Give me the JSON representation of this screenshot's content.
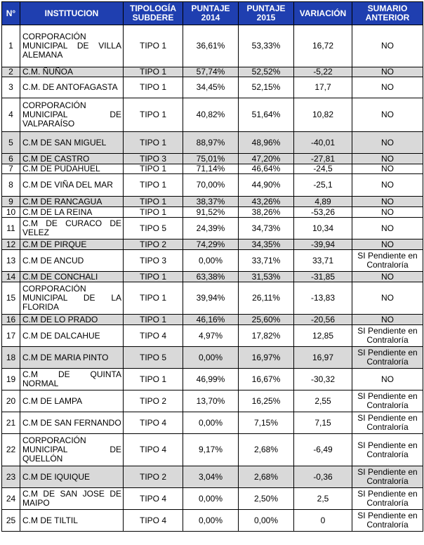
{
  "headers": {
    "num": "N°",
    "institucion": "INSTITUCION",
    "tipologia": "TIPOLOGÍA SUBDERE",
    "p2014": "PUNTAJE 2014",
    "p2015": "PUNTAJE 2015",
    "variacion": "VARIACIÓN",
    "sumario": "SUMARIO ANTERIOR"
  },
  "rows": [
    {
      "n": "1",
      "name": "CORPORACIÓN MUNICIPAL DE VILLA ALEMANA",
      "tipo": "TIPO 1",
      "p2014": "36,61%",
      "p2015": "53,33%",
      "var": "16,72",
      "sum": "NO",
      "shade": false,
      "h": 60
    },
    {
      "n": "2",
      "name": "C.M. ÑUÑOA",
      "tipo": "TIPO 1",
      "p2014": "57,74%",
      "p2015": "52,52%",
      "var": "-5,22",
      "sum": "NO",
      "shade": true,
      "h": 14
    },
    {
      "n": "3",
      "name": "C.M. DE ANTOFAGASTA",
      "tipo": "TIPO 1",
      "p2014": "34,45%",
      "p2015": "52,15%",
      "var": "17,7",
      "sum": "NO",
      "shade": false,
      "h": 30
    },
    {
      "n": "4",
      "name": "CORPORACIÓN MUNICIPAL DE VALPARAÍSO",
      "tipo": "TIPO 1",
      "p2014": "40,82%",
      "p2015": "51,64%",
      "var": "10,82",
      "sum": "NO",
      "shade": false,
      "h": 48
    },
    {
      "n": "5",
      "name": "C.M DE SAN MIGUEL",
      "tipo": "TIPO 1",
      "p2014": "88,97%",
      "p2015": "48,96%",
      "var": "-40,01",
      "sum": "NO",
      "shade": true,
      "h": 31
    },
    {
      "n": "6",
      "name": "C.M DE CASTRO",
      "tipo": "TIPO 3",
      "p2014": "75,01%",
      "p2015": "47,20%",
      "var": "-27,81",
      "sum": "NO",
      "shade": true,
      "h": 15
    },
    {
      "n": "7",
      "name": "C.M DE PUDAHUEL",
      "tipo": "TIPO 1",
      "p2014": "71,14%",
      "p2015": "46,64%",
      "var": "-24,5",
      "sum": "NO",
      "shade": false,
      "h": 14
    },
    {
      "n": "8",
      "name": "C.M DE VIÑA DEL MAR",
      "tipo": "TIPO 1",
      "p2014": "70,00%",
      "p2015": "44,90%",
      "var": "-25,1",
      "sum": "NO",
      "shade": false,
      "h": 32
    },
    {
      "n": "9",
      "name": "C.M DE RANCAGUA",
      "tipo": "TIPO 1",
      "p2014": "38,37%",
      "p2015": "43,26%",
      "var": "4,89",
      "sum": "NO",
      "shade": true,
      "h": 15
    },
    {
      "n": "10",
      "name": "C.M DE LA REINA",
      "tipo": "TIPO 1",
      "p2014": "91,52%",
      "p2015": "38,26%",
      "var": "-53,26",
      "sum": "NO",
      "shade": false,
      "h": 15
    },
    {
      "n": "11",
      "name": "C.M DE CURACO DE VELEZ",
      "tipo": "TIPO 5",
      "p2014": "24,39%",
      "p2015": "34,73%",
      "var": "10,34",
      "sum": "NO",
      "shade": false,
      "h": 31
    },
    {
      "n": "12",
      "name": "C.M DE PIRQUE",
      "tipo": "TIPO 2",
      "p2014": "74,29%",
      "p2015": "34,35%",
      "var": "-39,94",
      "sum": "NO",
      "shade": true,
      "h": 15
    },
    {
      "n": "13",
      "name": "C.M DE ANCUD",
      "tipo": "TIPO 3",
      "p2014": "0,00%",
      "p2015": "33,71%",
      "var": "33,71",
      "sum": "SI Pendiente en Contraloría",
      "shade": false,
      "h": 31
    },
    {
      "n": "14",
      "name": "C.M DE CONCHALI",
      "tipo": "TIPO 1",
      "p2014": "63,38%",
      "p2015": "31,53%",
      "var": "-31,85",
      "sum": "NO",
      "shade": true,
      "h": 15
    },
    {
      "n": "15",
      "name": "CORPORACIÓN MUNICIPAL DE LA FLORIDA",
      "tipo": "TIPO 1",
      "p2014": "39,94%",
      "p2015": "26,11%",
      "var": "-13,83",
      "sum": "NO",
      "shade": false,
      "h": 46
    },
    {
      "n": "16",
      "name": "C.M DE LO PRADO",
      "tipo": "TIPO 1",
      "p2014": "46,16%",
      "p2015": "25,60%",
      "var": "-20,56",
      "sum": "NO",
      "shade": true,
      "h": 15
    },
    {
      "n": "17",
      "name": "C.M DE DALCAHUE",
      "tipo": "TIPO 4",
      "p2014": "4,97%",
      "p2015": "17,82%",
      "var": "12,85",
      "sum": "SI Pendiente en Contraloría",
      "shade": false,
      "h": 31
    },
    {
      "n": "18",
      "name": "C.M DE MARIA PINTO",
      "tipo": "TIPO 5",
      "p2014": "0,00%",
      "p2015": "16,97%",
      "var": "16,97",
      "sum": "SI Pendiente en Contraloría",
      "shade": true,
      "h": 31
    },
    {
      "n": "19",
      "name": "C.M DE QUINTA NORMAL",
      "tipo": "TIPO 1",
      "p2014": "46,99%",
      "p2015": "16,67%",
      "var": "-30,32",
      "sum": "NO",
      "shade": false,
      "h": 31
    },
    {
      "n": "20",
      "name": "C.M DE LAMPA",
      "tipo": "TIPO 2",
      "p2014": "13,70%",
      "p2015": "16,25%",
      "var": "2,55",
      "sum": "SI Pendiente en Contraloría",
      "shade": false,
      "h": 31
    },
    {
      "n": "21",
      "name": "C.M DE SAN FERNANDO",
      "tipo": "TIPO 4",
      "p2014": "0,00%",
      "p2015": "7,15%",
      "var": "7,15",
      "sum": "SI Pendiente en Contraloría",
      "shade": false,
      "h": 31
    },
    {
      "n": "22",
      "name": "CORPORACIÓN MUNICIPAL DE QUELLÓN",
      "tipo": "TIPO 4",
      "p2014": "9,17%",
      "p2015": "2,68%",
      "var": "-6,49",
      "sum": "SI Pendiente en Contraloría",
      "shade": false,
      "h": 46
    },
    {
      "n": "23",
      "name": "C.M DE IQUIQUE",
      "tipo": "TIPO 2",
      "p2014": "3,04%",
      "p2015": "2,68%",
      "var": "-0,36",
      "sum": "SI Pendiente en Contraloría",
      "shade": true,
      "h": 31
    },
    {
      "n": "24",
      "name": "C.M DE SAN JOSE DE MAIPO",
      "tipo": "TIPO 4",
      "p2014": "0,00%",
      "p2015": "2,50%",
      "var": "2,5",
      "sum": "SI Pendiente en Contraloría",
      "shade": false,
      "h": 31
    },
    {
      "n": "25",
      "name": "C.M DE TILTIL",
      "tipo": "TIPO 4",
      "p2014": "0,00%",
      "p2015": "0,00%",
      "var": "0",
      "sum": "SI Pendiente en Contraloría",
      "shade": false,
      "h": 31
    }
  ]
}
